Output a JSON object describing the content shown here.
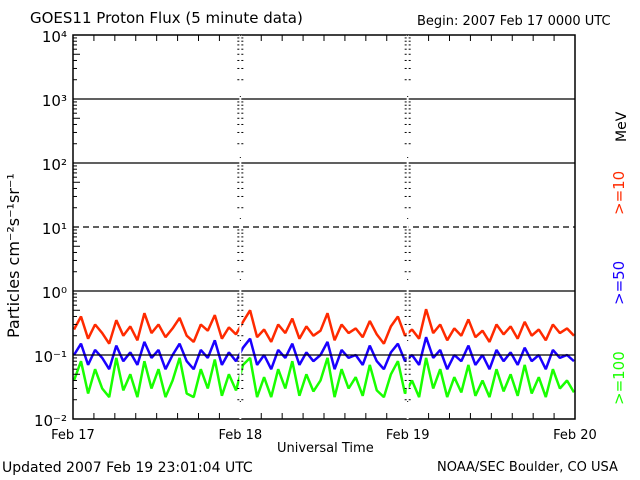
{
  "chart_data": {
    "type": "line",
    "title": "GOES11 Proton Flux (5 minute data)",
    "begin_label": "Begin: 2007 Feb 17 0000 UTC",
    "xlabel": "Universal Time",
    "ylabel": "Particles cm⁻²s⁻¹sr⁻¹",
    "yscale": "log",
    "ylim": [
      0.01,
      10000
    ],
    "ytick_labels": [
      "10⁴",
      "10³",
      "10²",
      "10¹",
      "10⁰",
      "10⁻¹",
      "10⁻²"
    ],
    "yticks": [
      10000,
      1000,
      100,
      10,
      1,
      0.1,
      0.01
    ],
    "xlim": [
      0,
      72
    ],
    "xtick_labels": [
      "Feb 17",
      "Feb 18",
      "Feb 19",
      "Feb 20"
    ],
    "xticks": [
      0,
      24,
      48,
      72
    ],
    "energy_unit": "MeV",
    "series": [
      {
        "name": ">=10",
        "color": "#ff2a00",
        "values": [
          0.25,
          0.4,
          0.18,
          0.3,
          0.22,
          0.15,
          0.35,
          0.2,
          0.28,
          0.17,
          0.45,
          0.22,
          0.3,
          0.19,
          0.26,
          0.38,
          0.2,
          0.16,
          0.3,
          0.24,
          0.42,
          0.18,
          0.27,
          0.21,
          0.33,
          0.5,
          0.19,
          0.25,
          0.16,
          0.3,
          0.22,
          0.37,
          0.18,
          0.28,
          0.2,
          0.24,
          0.45,
          0.17,
          0.3,
          0.22,
          0.26,
          0.19,
          0.34,
          0.21,
          0.15,
          0.28,
          0.4,
          0.2,
          0.25,
          0.18,
          0.52,
          0.22,
          0.3,
          0.17,
          0.26,
          0.2,
          0.36,
          0.19,
          0.24,
          0.16,
          0.3,
          0.21,
          0.28,
          0.18,
          0.33,
          0.2,
          0.25,
          0.17,
          0.3,
          0.22,
          0.26,
          0.2
        ]
      },
      {
        "name": ">=50",
        "color": "#1a00ff",
        "values": [
          0.1,
          0.15,
          0.07,
          0.12,
          0.09,
          0.06,
          0.14,
          0.08,
          0.11,
          0.07,
          0.16,
          0.09,
          0.12,
          0.06,
          0.1,
          0.15,
          0.08,
          0.06,
          0.12,
          0.09,
          0.17,
          0.07,
          0.11,
          0.08,
          0.13,
          0.18,
          0.07,
          0.1,
          0.06,
          0.12,
          0.09,
          0.15,
          0.07,
          0.11,
          0.08,
          0.1,
          0.16,
          0.06,
          0.12,
          0.09,
          0.1,
          0.07,
          0.14,
          0.08,
          0.06,
          0.11,
          0.15,
          0.08,
          0.1,
          0.07,
          0.19,
          0.09,
          0.12,
          0.06,
          0.1,
          0.08,
          0.14,
          0.07,
          0.1,
          0.06,
          0.12,
          0.08,
          0.11,
          0.07,
          0.13,
          0.08,
          0.1,
          0.06,
          0.12,
          0.09,
          0.1,
          0.08
        ]
      },
      {
        "name": ">=100",
        "color": "#19ff00",
        "values": [
          0.04,
          0.08,
          0.025,
          0.06,
          0.03,
          0.022,
          0.09,
          0.028,
          0.05,
          0.022,
          0.08,
          0.03,
          0.06,
          0.022,
          0.04,
          0.09,
          0.025,
          0.022,
          0.06,
          0.03,
          0.085,
          0.023,
          0.05,
          0.028,
          0.07,
          0.09,
          0.022,
          0.045,
          0.022,
          0.06,
          0.03,
          0.08,
          0.023,
          0.05,
          0.027,
          0.04,
          0.09,
          0.022,
          0.06,
          0.03,
          0.045,
          0.023,
          0.07,
          0.028,
          0.022,
          0.05,
          0.08,
          0.025,
          0.04,
          0.022,
          0.09,
          0.03,
          0.06,
          0.022,
          0.045,
          0.026,
          0.07,
          0.023,
          0.04,
          0.022,
          0.06,
          0.027,
          0.05,
          0.023,
          0.07,
          0.025,
          0.045,
          0.022,
          0.06,
          0.03,
          0.04,
          0.026
        ]
      }
    ]
  },
  "footer": {
    "updated": "Updated 2007 Feb 19 23:01:04 UTC",
    "source": "NOAA/SEC Boulder, CO USA"
  }
}
